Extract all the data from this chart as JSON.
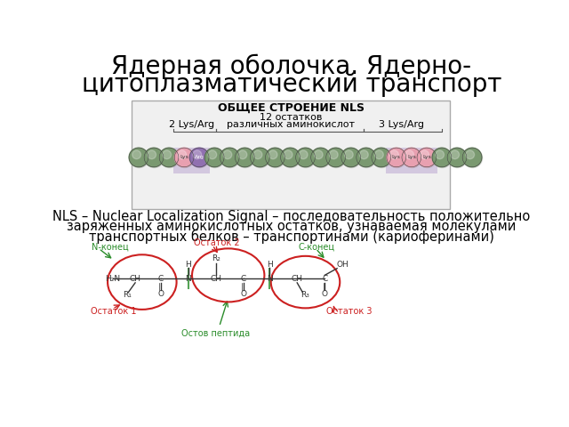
{
  "title_line1": "Ядерная оболочка. Ядерно-",
  "title_line2": "цитоплазматический транспорт",
  "title_fontsize": 20,
  "title_color": "#000000",
  "bg_color": "#ffffff",
  "nls_box_label": "ОБЩЕЕ СТРОЕНИЕ NLS",
  "nls_label_2lys": "2 Lys/Arg",
  "nls_label_12a": "12 остатков",
  "nls_label_12b": "различных аминокислот",
  "nls_label_3lys": "3 Lys/Arg",
  "description_text": "NLS – Nuclear Localization Signal – последовательность положительно\nзаряженных аминокислотных остатков, узнаваемая молекулами\nтранспортных белков – транспортинами (кариоферинами)",
  "desc_fontsize": 10.5,
  "bead_green": "#7A9970",
  "bead_pink": "#E8A0B0",
  "bead_purple": "#9070B0",
  "bead_lavender_bg": "#C8B8D8",
  "label_n_konec": "N-конец",
  "label_c_konec": "С-конец",
  "label_ostatok1": "Остаток 1",
  "label_ostatok2": "Остаток 2",
  "label_ostatok3": "Остаток 3",
  "label_ostov": "Остов пептида",
  "green_color": "#2A8C2A",
  "red_color": "#CC2020",
  "black_color": "#1a1a1a"
}
